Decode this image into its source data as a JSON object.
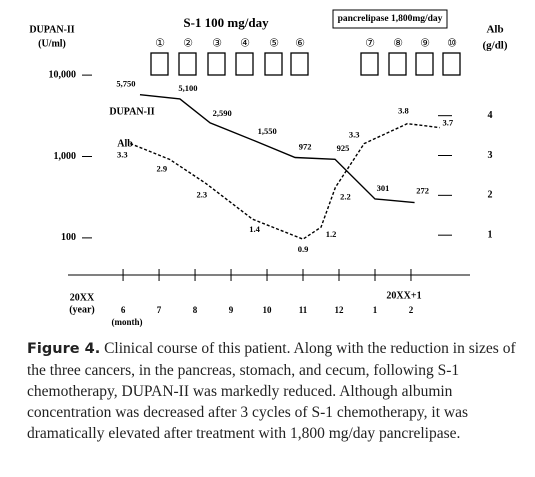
{
  "chart_data": {
    "type": "line",
    "y_label": [
      "DUPAN-II",
      "(U/ml)"
    ],
    "y2_label": [
      "Alb",
      "(g/dl)"
    ],
    "x_year_start": [
      "20XX",
      "(year)"
    ],
    "x_month_label": "(month)",
    "x_year_next": "20XX+1",
    "annotations": {
      "s1": "S-1 100 mg/day",
      "pancrelipase": "pancrelipase 1,800mg/day",
      "cycles": [
        "①",
        "②",
        "③",
        "④",
        "⑤",
        "⑥",
        "⑦",
        "⑧",
        "⑨",
        "⑩"
      ]
    },
    "log_y": true,
    "ylim": [
      35,
      27000
    ],
    "yticks": [
      100,
      {
        "value": 1000,
        "label": "1,000"
      },
      {
        "value": 10000,
        "label": "10,000"
      }
    ],
    "y2lim": [
      0,
      5.9
    ],
    "y2ticks": [
      1,
      2,
      3,
      4
    ],
    "xlim": [
      4.47,
      15.64
    ],
    "xticks": [
      6,
      7,
      8,
      9,
      10,
      11,
      12,
      {
        "value": 13,
        "label": "1"
      },
      {
        "value": 14,
        "label": "2"
      }
    ],
    "series": [
      {
        "name": "DUPAN-II",
        "color": "#000000",
        "dash": false,
        "x": [
          6.47,
          7.58,
          8.42,
          9.67,
          10.78,
          11.89,
          13.0,
          14.1
        ],
        "values": [
          5750,
          5100,
          2590,
          1550,
          972,
          925,
          301,
          272
        ],
        "value_labels": [
          "5,750",
          "5,100",
          "2,590",
          "1,550",
          "972",
          "925",
          "301",
          "272"
        ]
      },
      {
        "name": "Alb",
        "color": "#000000",
        "dash": true,
        "axis": "y2",
        "x": [
          6.2,
          7.3,
          8.3,
          9.6,
          11.0,
          11.5,
          11.9,
          12.7,
          13.9,
          14.8
        ],
        "values": [
          3.3,
          2.9,
          2.3,
          1.4,
          0.9,
          1.2,
          2.2,
          3.3,
          3.8,
          3.7
        ]
      }
    ]
  },
  "caption": {
    "label": "Figure 4.",
    "text": "Clinical course of this patient. Along with the reduction in sizes of the three cancers, in the pancreas, stomach, and cecum, following S-1 chemotherapy, DUPAN-II was markedly reduced. Although albumin concentration was decreased after 3 cycles of S-1 chemotherapy, it was dramatically elevated after treatment with 1,800 mg/day pancrelipase."
  }
}
